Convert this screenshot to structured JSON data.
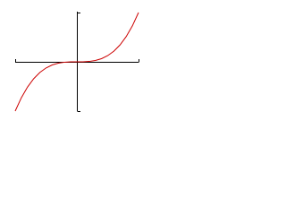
{
  "chart_data": {
    "type": "line",
    "x": [
      -1,
      -0.9,
      -0.8,
      -0.7,
      -0.6,
      -0.5,
      -0.4,
      -0.3,
      -0.2,
      -0.1,
      0,
      0.1,
      0.2,
      0.3,
      0.4,
      0.5,
      0.6,
      0.7,
      0.8,
      0.9,
      1
    ],
    "series": [
      {
        "color": "#cc0000",
        "values": [
          -1,
          -0.729,
          -0.512,
          -0.343,
          -0.216,
          -0.125,
          -0.064,
          -0.027,
          -0.008,
          -0.001,
          0,
          0.001,
          0.008,
          0.027,
          0.064,
          0.125,
          0.216,
          0.343,
          0.512,
          0.729,
          1
        ]
      }
    ],
    "xlim": [
      -1,
      1
    ],
    "ylim": [
      -1,
      1
    ]
  }
}
